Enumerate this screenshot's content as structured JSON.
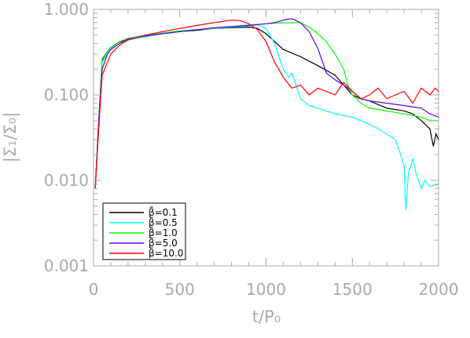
{
  "chart_data": {
    "type": "line",
    "xlabel": "t/P₀",
    "ylabel": "|Σ₁/Σ₀|",
    "xlim": [
      0,
      2000
    ],
    "ylim": [
      0.001,
      1.0
    ],
    "yscale": "log",
    "grid": false,
    "legend_position": "bottom-left",
    "x_ticks": [
      0,
      500,
      1000,
      1500,
      2000
    ],
    "x_tick_labels": [
      "0",
      "500",
      "1000",
      "1500",
      "2000"
    ],
    "y_ticks": [
      0.001,
      0.01,
      0.1,
      1.0
    ],
    "y_tick_labels": [
      "0.001",
      "0.010",
      "0.100",
      "1.000"
    ],
    "axis_color": "#a9a9a9",
    "series": [
      {
        "name": "β̃=0.1",
        "color": "#000000",
        "points": [
          [
            10,
            0.008
          ],
          [
            30,
            0.05
          ],
          [
            50,
            0.26
          ],
          [
            80,
            0.32
          ],
          [
            100,
            0.36
          ],
          [
            150,
            0.42
          ],
          [
            200,
            0.44
          ],
          [
            300,
            0.48
          ],
          [
            400,
            0.52
          ],
          [
            500,
            0.55
          ],
          [
            600,
            0.57
          ],
          [
            700,
            0.6
          ],
          [
            800,
            0.61
          ],
          [
            900,
            0.62
          ],
          [
            950,
            0.6
          ],
          [
            1000,
            0.52
          ],
          [
            1050,
            0.42
          ],
          [
            1100,
            0.34
          ],
          [
            1200,
            0.28
          ],
          [
            1300,
            0.22
          ],
          [
            1400,
            0.17
          ],
          [
            1450,
            0.13
          ],
          [
            1500,
            0.1
          ],
          [
            1550,
            0.09
          ],
          [
            1600,
            0.085
          ],
          [
            1700,
            0.07
          ],
          [
            1800,
            0.065
          ],
          [
            1850,
            0.06
          ],
          [
            1900,
            0.05
          ],
          [
            1950,
            0.04
          ],
          [
            1970,
            0.025
          ],
          [
            1985,
            0.035
          ],
          [
            2000,
            0.03
          ]
        ]
      },
      {
        "name": "β̃=0.5",
        "color": "#00ffff",
        "points": [
          [
            10,
            0.008
          ],
          [
            30,
            0.045
          ],
          [
            50,
            0.24
          ],
          [
            80,
            0.3
          ],
          [
            100,
            0.35
          ],
          [
            150,
            0.4
          ],
          [
            200,
            0.44
          ],
          [
            300,
            0.48
          ],
          [
            400,
            0.52
          ],
          [
            500,
            0.55
          ],
          [
            600,
            0.58
          ],
          [
            700,
            0.6
          ],
          [
            800,
            0.62
          ],
          [
            900,
            0.64
          ],
          [
            950,
            0.66
          ],
          [
            1000,
            0.6
          ],
          [
            1050,
            0.4
          ],
          [
            1080,
            0.26
          ],
          [
            1100,
            0.2
          ],
          [
            1130,
            0.16
          ],
          [
            1150,
            0.18
          ],
          [
            1200,
            0.09
          ],
          [
            1250,
            0.075
          ],
          [
            1300,
            0.07
          ],
          [
            1400,
            0.06
          ],
          [
            1500,
            0.055
          ],
          [
            1550,
            0.05
          ],
          [
            1600,
            0.045
          ],
          [
            1650,
            0.04
          ],
          [
            1700,
            0.035
          ],
          [
            1750,
            0.03
          ],
          [
            1780,
            0.02
          ],
          [
            1800,
            0.015
          ],
          [
            1810,
            0.0045
          ],
          [
            1825,
            0.012
          ],
          [
            1850,
            0.018
          ],
          [
            1870,
            0.012
          ],
          [
            1900,
            0.008
          ],
          [
            1920,
            0.01
          ],
          [
            1950,
            0.0085
          ],
          [
            2000,
            0.009
          ]
        ]
      },
      {
        "name": "β̃=1.0",
        "color": "#00ff00",
        "points": [
          [
            10,
            0.008
          ],
          [
            30,
            0.05
          ],
          [
            50,
            0.25
          ],
          [
            80,
            0.32
          ],
          [
            100,
            0.36
          ],
          [
            150,
            0.42
          ],
          [
            200,
            0.46
          ],
          [
            300,
            0.5
          ],
          [
            400,
            0.53
          ],
          [
            500,
            0.56
          ],
          [
            600,
            0.58
          ],
          [
            700,
            0.6
          ],
          [
            800,
            0.63
          ],
          [
            900,
            0.66
          ],
          [
            1000,
            0.68
          ],
          [
            1100,
            0.7
          ],
          [
            1200,
            0.7
          ],
          [
            1250,
            0.62
          ],
          [
            1300,
            0.52
          ],
          [
            1350,
            0.42
          ],
          [
            1400,
            0.3
          ],
          [
            1450,
            0.2
          ],
          [
            1480,
            0.12
          ],
          [
            1500,
            0.1
          ],
          [
            1550,
            0.08
          ],
          [
            1600,
            0.07
          ],
          [
            1700,
            0.065
          ],
          [
            1800,
            0.06
          ],
          [
            1900,
            0.055
          ],
          [
            1950,
            0.05
          ],
          [
            2000,
            0.05
          ]
        ]
      },
      {
        "name": "β̃=5.0",
        "color": "#5a00ff",
        "points": [
          [
            10,
            0.008
          ],
          [
            30,
            0.05
          ],
          [
            50,
            0.2
          ],
          [
            80,
            0.3
          ],
          [
            100,
            0.34
          ],
          [
            150,
            0.4
          ],
          [
            200,
            0.45
          ],
          [
            300,
            0.49
          ],
          [
            400,
            0.52
          ],
          [
            500,
            0.55
          ],
          [
            600,
            0.58
          ],
          [
            700,
            0.61
          ],
          [
            800,
            0.63
          ],
          [
            900,
            0.65
          ],
          [
            1000,
            0.68
          ],
          [
            1050,
            0.7
          ],
          [
            1100,
            0.75
          ],
          [
            1150,
            0.78
          ],
          [
            1200,
            0.7
          ],
          [
            1250,
            0.55
          ],
          [
            1300,
            0.35
          ],
          [
            1350,
            0.18
          ],
          [
            1400,
            0.15
          ],
          [
            1450,
            0.13
          ],
          [
            1500,
            0.11
          ],
          [
            1550,
            0.09
          ],
          [
            1600,
            0.085
          ],
          [
            1700,
            0.08
          ],
          [
            1800,
            0.075
          ],
          [
            1900,
            0.07
          ],
          [
            1950,
            0.06
          ],
          [
            2000,
            0.055
          ]
        ]
      },
      {
        "name": "β̃=10.0",
        "color": "#ff0000",
        "points": [
          [
            10,
            0.008
          ],
          [
            30,
            0.04
          ],
          [
            50,
            0.17
          ],
          [
            80,
            0.24
          ],
          [
            100,
            0.3
          ],
          [
            150,
            0.38
          ],
          [
            200,
            0.44
          ],
          [
            300,
            0.5
          ],
          [
            400,
            0.55
          ],
          [
            500,
            0.6
          ],
          [
            600,
            0.65
          ],
          [
            700,
            0.7
          ],
          [
            800,
            0.75
          ],
          [
            850,
            0.74
          ],
          [
            900,
            0.68
          ],
          [
            950,
            0.58
          ],
          [
            1000,
            0.42
          ],
          [
            1050,
            0.24
          ],
          [
            1080,
            0.19
          ],
          [
            1100,
            0.16
          ],
          [
            1150,
            0.12
          ],
          [
            1200,
            0.13
          ],
          [
            1250,
            0.1
          ],
          [
            1300,
            0.12
          ],
          [
            1350,
            0.11
          ],
          [
            1400,
            0.1
          ],
          [
            1450,
            0.14
          ],
          [
            1500,
            0.11
          ],
          [
            1550,
            0.09
          ],
          [
            1600,
            0.1
          ],
          [
            1650,
            0.12
          ],
          [
            1700,
            0.09
          ],
          [
            1750,
            0.1
          ],
          [
            1800,
            0.11
          ],
          [
            1850,
            0.08
          ],
          [
            1900,
            0.12
          ],
          [
            1950,
            0.1
          ],
          [
            1980,
            0.12
          ],
          [
            2000,
            0.11
          ]
        ]
      }
    ]
  }
}
